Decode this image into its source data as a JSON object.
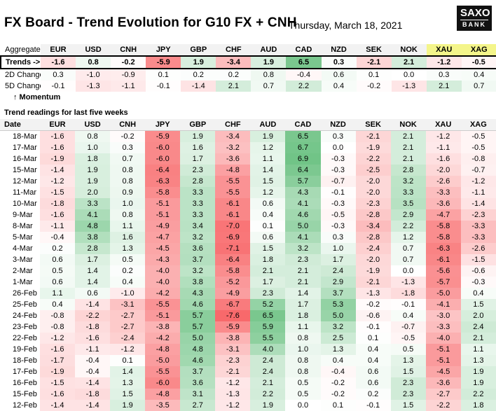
{
  "header": {
    "title": "FX Board - Trend Evolution for G10 FX + CNH",
    "date": "Thursday, March 18, 2021",
    "logo_line1": "SAXO",
    "logo_line2": "BANK"
  },
  "summary": {
    "aggregate_label": "Aggregate",
    "trends_label": "Trends ->",
    "change2d_label": "2D Change",
    "change5d_label": "5D Change",
    "momentum_label": "↑ Momentum",
    "currencies": [
      "EUR",
      "USD",
      "CNH",
      "JPY",
      "GBP",
      "CHF",
      "AUD",
      "CAD",
      "NZD",
      "SEK",
      "NOK",
      "XAU",
      "XAG"
    ],
    "trends": [
      "-1.6",
      "0.8",
      "-0.2",
      "-5.9",
      "1.9",
      "-3.4",
      "1.9",
      "6.5",
      "0.3",
      "-2.1",
      "2.1",
      "-1.2",
      "-0.5"
    ],
    "change2d": [
      "0.3",
      "-1.0",
      "-0.9",
      "0.1",
      "0.2",
      "0.2",
      "0.8",
      "-0.4",
      "0.6",
      "0.1",
      "0.0",
      "0.3",
      "0.4"
    ],
    "change5d": [
      "-0.1",
      "-1.3",
      "-1.1",
      "-0.1",
      "-1.4",
      "2.1",
      "0.7",
      "2.2",
      "0.4",
      "-0.2",
      "-1.3",
      "2.1",
      "0.7"
    ],
    "highlight_color": "#f4f58a"
  },
  "weeks": {
    "section_label": "Trend readings for last five weeks",
    "date_label": "Date",
    "rows": [
      {
        "date": "18-Mar",
        "values": [
          "-1.6",
          "0.8",
          "-0.2",
          "-5.9",
          "1.9",
          "-3.4",
          "1.9",
          "6.5",
          "0.3",
          "-2.1",
          "2.1",
          "-1.2",
          "-0.5"
        ]
      },
      {
        "date": "17-Mar",
        "values": [
          "-1.6",
          "1.0",
          "0.3",
          "-6.0",
          "1.6",
          "-3.2",
          "1.2",
          "6.7",
          "0.0",
          "-1.9",
          "2.1",
          "-1.1",
          "-0.5"
        ]
      },
      {
        "date": "16-Mar",
        "values": [
          "-1.9",
          "1.8",
          "0.7",
          "-6.0",
          "1.7",
          "-3.6",
          "1.1",
          "6.9",
          "-0.3",
          "-2.2",
          "2.1",
          "-1.6",
          "-0.8"
        ]
      },
      {
        "date": "15-Mar",
        "values": [
          "-1.4",
          "1.9",
          "0.8",
          "-6.4",
          "2.3",
          "-4.8",
          "1.4",
          "6.4",
          "-0.3",
          "-2.5",
          "2.8",
          "-2.0",
          "-0.7"
        ]
      },
      {
        "date": "12-Mar",
        "values": [
          "-1.2",
          "1.9",
          "0.8",
          "-6.3",
          "2.8",
          "-5.5",
          "1.5",
          "5.7",
          "-0.7",
          "-2.0",
          "3.2",
          "-2.6",
          "-1.2"
        ]
      },
      {
        "date": "11-Mar",
        "values": [
          "-1.5",
          "2.0",
          "0.9",
          "-5.8",
          "3.3",
          "-5.5",
          "1.2",
          "4.3",
          "-0.1",
          "-2.0",
          "3.3",
          "-3.3",
          "-1.1"
        ]
      },
      {
        "date": "10-Mar",
        "values": [
          "-1.8",
          "3.3",
          "1.0",
          "-5.1",
          "3.3",
          "-6.1",
          "0.6",
          "4.1",
          "-0.3",
          "-2.3",
          "3.5",
          "-3.6",
          "-1.4"
        ]
      },
      {
        "date": "9-Mar",
        "values": [
          "-1.6",
          "4.1",
          "0.8",
          "-5.1",
          "3.3",
          "-6.1",
          "0.4",
          "4.6",
          "-0.5",
          "-2.8",
          "2.9",
          "-4.7",
          "-2.3"
        ]
      },
      {
        "date": "8-Mar",
        "values": [
          "-1.1",
          "4.8",
          "1.1",
          "-4.9",
          "3.4",
          "-7.0",
          "0.1",
          "5.0",
          "-0.3",
          "-3.4",
          "2.2",
          "-5.8",
          "-3.3"
        ]
      },
      {
        "date": "5-Mar",
        "values": [
          "-0.4",
          "3.8",
          "1.6",
          "-4.7",
          "3.2",
          "-6.9",
          "0.6",
          "4.1",
          "0.3",
          "-2.8",
          "1.2",
          "-5.8",
          "-3.3"
        ]
      },
      {
        "date": "4-Mar",
        "values": [
          "0.2",
          "2.8",
          "1.3",
          "-4.5",
          "3.6",
          "-7.1",
          "1.5",
          "3.2",
          "1.0",
          "-2.4",
          "0.7",
          "-6.3",
          "-2.6"
        ]
      },
      {
        "date": "3-Mar",
        "values": [
          "0.6",
          "1.7",
          "0.5",
          "-4.3",
          "3.7",
          "-6.4",
          "1.8",
          "2.3",
          "1.7",
          "-2.0",
          "0.7",
          "-6.1",
          "-1.5"
        ]
      },
      {
        "date": "2-Mar",
        "values": [
          "0.5",
          "1.4",
          "0.2",
          "-4.0",
          "3.2",
          "-5.8",
          "2.1",
          "2.1",
          "2.4",
          "-1.9",
          "0.0",
          "-5.6",
          "-0.6"
        ]
      },
      {
        "date": "1-Mar",
        "values": [
          "0.6",
          "1.4",
          "0.4",
          "-4.0",
          "3.8",
          "-5.2",
          "1.7",
          "2.1",
          "2.9",
          "-2.1",
          "-1.3",
          "-5.7",
          "-0.3"
        ]
      },
      {
        "date": "26-Feb",
        "values": [
          "1.1",
          "0.6",
          "-1.0",
          "-4.2",
          "4.3",
          "-4.9",
          "2.3",
          "1.4",
          "3.7",
          "-1.3",
          "-1.8",
          "-5.0",
          "0.4"
        ]
      },
      {
        "date": "25-Feb",
        "values": [
          "0.4",
          "-1.4",
          "-3.1",
          "-5.5",
          "4.6",
          "-6.7",
          "5.2",
          "1.7",
          "5.3",
          "-0.2",
          "-0.1",
          "-4.1",
          "1.5"
        ]
      },
      {
        "date": "24-Feb",
        "values": [
          "-0.8",
          "-2.2",
          "-2.7",
          "-5.1",
          "5.7",
          "-7.6",
          "6.5",
          "1.8",
          "5.0",
          "-0.6",
          "0.4",
          "-3.0",
          "2.0"
        ]
      },
      {
        "date": "23-Feb",
        "values": [
          "-0.8",
          "-1.8",
          "-2.7",
          "-3.8",
          "5.7",
          "-5.9",
          "5.9",
          "1.1",
          "3.2",
          "-0.1",
          "-0.7",
          "-3.3",
          "2.4"
        ]
      },
      {
        "date": "22-Feb",
        "values": [
          "-1.2",
          "-1.6",
          "-2.4",
          "-4.2",
          "5.0",
          "-3.8",
          "5.5",
          "0.8",
          "2.5",
          "0.1",
          "-0.5",
          "-4.0",
          "2.1"
        ]
      },
      {
        "date": "19-Feb",
        "values": [
          "-1.6",
          "-1.1",
          "-1.2",
          "-4.8",
          "4.8",
          "-3.1",
          "4.0",
          "1.0",
          "1.3",
          "0.4",
          "0.5",
          "-5.1",
          "1.1"
        ]
      },
      {
        "date": "18-Feb",
        "values": [
          "-1.7",
          "-0.4",
          "0.1",
          "-5.0",
          "4.6",
          "-2.3",
          "2.4",
          "0.8",
          "0.4",
          "0.4",
          "1.3",
          "-5.1",
          "1.3"
        ]
      },
      {
        "date": "17-Feb",
        "values": [
          "-1.9",
          "-0.4",
          "1.4",
          "-5.5",
          "3.7",
          "-2.1",
          "2.4",
          "0.8",
          "-0.4",
          "0.6",
          "1.5",
          "-4.5",
          "1.9"
        ]
      },
      {
        "date": "16-Feb",
        "values": [
          "-1.5",
          "-1.4",
          "1.3",
          "-6.0",
          "3.6",
          "-1.2",
          "2.1",
          "0.5",
          "-0.2",
          "0.6",
          "2.3",
          "-3.6",
          "1.9"
        ]
      },
      {
        "date": "15-Feb",
        "values": [
          "-1.6",
          "-1.8",
          "1.5",
          "-4.8",
          "3.1",
          "-1.3",
          "2.2",
          "0.5",
          "-0.2",
          "0.2",
          "2.3",
          "-2.7",
          "2.2"
        ]
      },
      {
        "date": "12-Feb",
        "values": [
          "-1.4",
          "-1.4",
          "1.9",
          "-3.5",
          "2.7",
          "-1.2",
          "1.9",
          "0.0",
          "0.1",
          "-0.1",
          "1.5",
          "-2.2",
          "1.8"
        ]
      }
    ]
  }
}
